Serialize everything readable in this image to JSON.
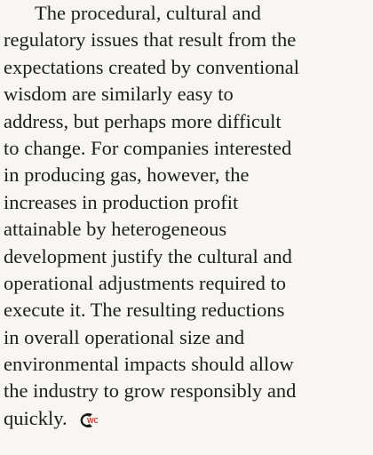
{
  "paragraph": {
    "lines": [
      "The procedural, cultural and",
      "regulatory issues that result from the",
      "expectations created by conventional",
      "wisdom are similarly easy to",
      "address, but perhaps more difficult",
      "to change. For companies interested",
      "in producing gas, however, the",
      "increases in production profit",
      "attainable by heterogeneous",
      "development justify the cultural and",
      "operational adjustments required to",
      "execute it. The resulting reductions",
      "in overall operational size and",
      "environmental impacts should allow",
      "the industry to grow responsibly and",
      "quickly."
    ],
    "end_mark": "WC"
  }
}
